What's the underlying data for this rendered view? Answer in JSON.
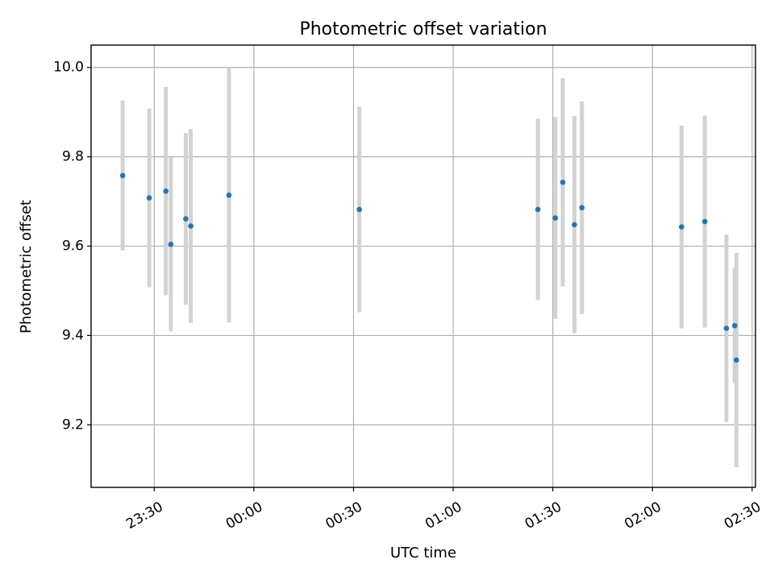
{
  "chart_data": {
    "type": "scatter",
    "title": "Photometric offset variation",
    "xlabel": "UTC time",
    "ylabel": "Photometric offset",
    "x_ticks": [
      "23:30",
      "00:00",
      "00:30",
      "01:00",
      "01:30",
      "02:00",
      "02:30"
    ],
    "y_ticks": [
      "9.2",
      "9.4",
      "9.6",
      "9.8",
      "10.0"
    ],
    "xlim": [
      "23:11:00",
      "02:31:00"
    ],
    "ylim": [
      9.06,
      10.05
    ],
    "grid": true,
    "colors": {
      "points": "#1f77b4",
      "error_bars": "#d3d3d3"
    },
    "points": [
      {
        "x": "23:20:30",
        "y": 9.758,
        "y_err": 0.168
      },
      {
        "x": "23:28:30",
        "y": 9.708,
        "y_err": 0.2
      },
      {
        "x": "23:33:30",
        "y": 9.723,
        "y_err": 0.233
      },
      {
        "x": "23:35:00",
        "y": 9.604,
        "y_err": 0.195
      },
      {
        "x": "23:39:30",
        "y": 9.661,
        "y_err": 0.192
      },
      {
        "x": "23:41:00",
        "y": 9.645,
        "y_err": 0.217
      },
      {
        "x": "23:52:30",
        "y": 9.714,
        "y_err": 0.285
      },
      {
        "x": "00:31:45",
        "y": 9.682,
        "y_err": 0.23
      },
      {
        "x": "01:25:30",
        "y": 9.682,
        "y_err": 0.203
      },
      {
        "x": "01:30:45",
        "y": 9.663,
        "y_err": 0.226
      },
      {
        "x": "01:33:00",
        "y": 9.743,
        "y_err": 0.233
      },
      {
        "x": "01:36:30",
        "y": 9.648,
        "y_err": 0.243
      },
      {
        "x": "01:38:45",
        "y": 9.686,
        "y_err": 0.238
      },
      {
        "x": "02:08:45",
        "y": 9.643,
        "y_err": 0.227
      },
      {
        "x": "02:15:45",
        "y": 9.655,
        "y_err": 0.237
      },
      {
        "x": "02:22:15",
        "y": 9.416,
        "y_err": 0.21
      },
      {
        "x": "02:24:45",
        "y": 9.422,
        "y_err": 0.128
      },
      {
        "x": "02:25:15",
        "y": 9.345,
        "y_err": 0.24
      }
    ]
  }
}
